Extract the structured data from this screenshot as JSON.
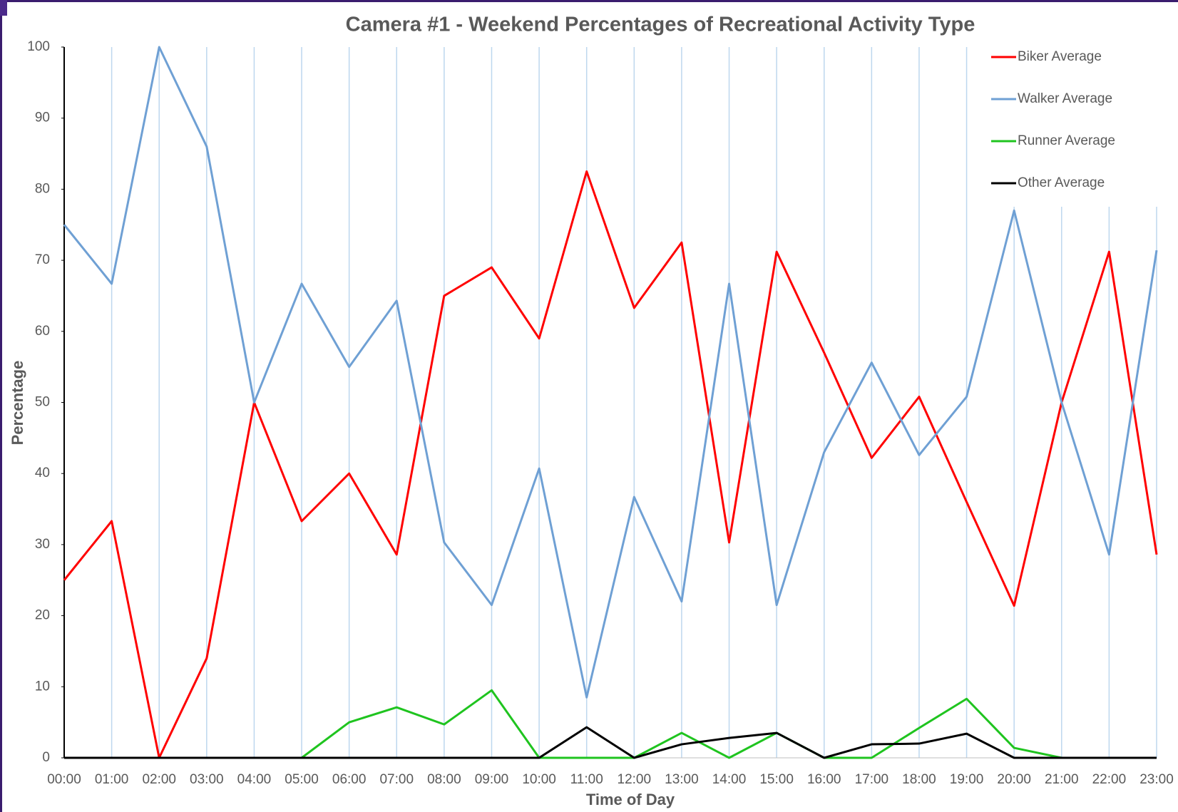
{
  "chart_data": {
    "type": "line",
    "title": "Camera #1 - Weekend Percentages of Recreational Activity Type",
    "x_label": "Time of Day",
    "y_label": "Percentage",
    "categories": [
      "00:00",
      "01:00",
      "02:00",
      "03:00",
      "04:00",
      "05:00",
      "06:00",
      "07:00",
      "08:00",
      "09:00",
      "10:00",
      "11:00",
      "12:00",
      "13:00",
      "14:00",
      "15:00",
      "16:00",
      "17:00",
      "18:00",
      "19:00",
      "20:00",
      "21:00",
      "22:00",
      "23:00"
    ],
    "series": [
      {
        "name": "Biker Average",
        "color": "#ff0000",
        "values": [
          25,
          33.3,
          0,
          14,
          50,
          33.3,
          40,
          28.6,
          65,
          69,
          59,
          82.5,
          63.3,
          72.5,
          30.3,
          71.2,
          57,
          42.2,
          50.8,
          36,
          21.4,
          50,
          71.2,
          28.6
        ]
      },
      {
        "name": "Walker Average",
        "color": "#6fa0d4",
        "values": [
          75,
          66.7,
          100,
          86,
          50,
          66.7,
          55,
          64.3,
          30.3,
          21.5,
          40.7,
          8.5,
          36.7,
          22,
          66.7,
          21.5,
          43,
          55.6,
          42.6,
          50.8,
          77,
          50,
          28.6,
          71.4
        ]
      },
      {
        "name": "Runner Average",
        "color": "#1fc41f",
        "values": [
          0,
          0,
          0,
          0,
          0,
          0,
          5,
          7.1,
          4.7,
          9.5,
          0,
          0,
          0,
          3.5,
          0,
          3.5,
          0,
          0,
          4.2,
          8.3,
          1.4,
          0,
          0,
          0
        ]
      },
      {
        "name": "Other Average",
        "color": "#000000",
        "values": [
          0,
          0,
          0,
          0,
          0,
          0,
          0,
          0,
          0,
          0,
          0,
          4.3,
          0,
          1.9,
          2.8,
          3.5,
          0,
          1.9,
          2.0,
          3.4,
          0,
          0,
          0,
          0
        ]
      }
    ],
    "ylim": [
      0,
      100
    ],
    "yticks": [
      0,
      10,
      20,
      30,
      40,
      50,
      60,
      70,
      80,
      90,
      100
    ],
    "grid": "x",
    "legend": "top-right"
  }
}
